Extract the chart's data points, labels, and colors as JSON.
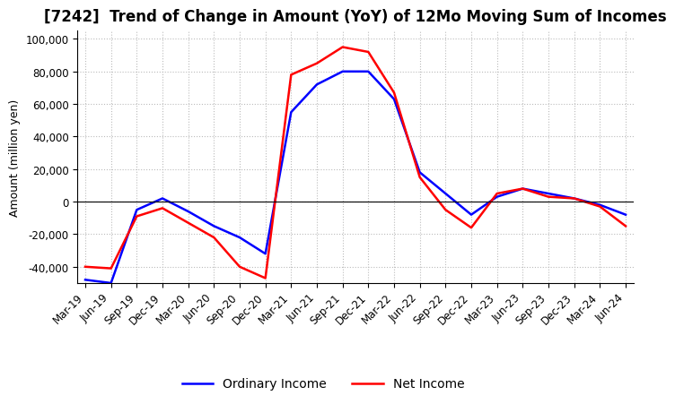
{
  "title": "[7242]  Trend of Change in Amount (YoY) of 12Mo Moving Sum of Incomes",
  "ylabel": "Amount (million yen)",
  "x_labels": [
    "Mar-19",
    "Jun-19",
    "Sep-19",
    "Dec-19",
    "Mar-20",
    "Jun-20",
    "Sep-20",
    "Dec-20",
    "Mar-21",
    "Jun-21",
    "Sep-21",
    "Dec-21",
    "Mar-22",
    "Jun-22",
    "Sep-22",
    "Dec-22",
    "Mar-23",
    "Jun-23",
    "Sep-23",
    "Dec-23",
    "Mar-24",
    "Jun-24"
  ],
  "ordinary_income": [
    -48000,
    -50000,
    -5000,
    2000,
    -6000,
    -15000,
    -22000,
    -32000,
    55000,
    72000,
    80000,
    80000,
    63000,
    18000,
    5000,
    -8000,
    3000,
    8000,
    5000,
    2000,
    -2000,
    -8000
  ],
  "net_income": [
    -40000,
    -41000,
    -9000,
    -4000,
    -13000,
    -22000,
    -40000,
    -47000,
    78000,
    85000,
    95000,
    92000,
    67000,
    15000,
    -5000,
    -16000,
    5000,
    8000,
    3000,
    2000,
    -3000,
    -15000
  ],
  "ordinary_income_color": "#0000ff",
  "net_income_color": "#ff0000",
  "ylim": [
    -50000,
    105000
  ],
  "yticks": [
    -40000,
    -20000,
    0,
    20000,
    40000,
    60000,
    80000,
    100000
  ],
  "background_color": "#ffffff",
  "grid_color": "#bbbbbb",
  "title_fontsize": 12,
  "axis_fontsize": 9,
  "tick_fontsize": 8.5,
  "legend_fontsize": 10
}
